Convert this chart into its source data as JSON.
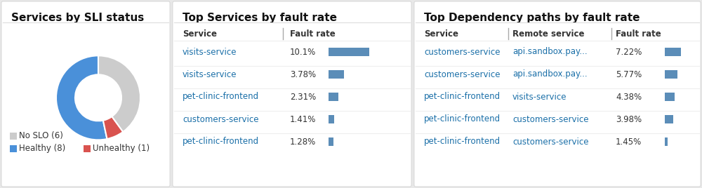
{
  "bg_color": "#e8e8e8",
  "panel_bg": "#ffffff",
  "panel1": {
    "title": "Services by SLI status",
    "donut_values": [
      8,
      1,
      6
    ],
    "donut_colors": [
      "#4a90d9",
      "#d9534f",
      "#cccccc"
    ],
    "legend_labels": [
      "Healthy (8)",
      "Unhealthy (1)",
      "No SLO (6)"
    ]
  },
  "panel2": {
    "title": "Top Services by fault rate",
    "col_service": "Service",
    "col_fault": "Fault rate",
    "rows": [
      {
        "service": "visits-service",
        "fault_rate": "10.1%",
        "bar_width": 0.85
      },
      {
        "service": "visits-service",
        "fault_rate": "3.78%",
        "bar_width": 0.32
      },
      {
        "service": "pet-clinic-frontend",
        "fault_rate": "2.31%",
        "bar_width": 0.2
      },
      {
        "service": "customers-service",
        "fault_rate": "1.41%",
        "bar_width": 0.12
      },
      {
        "service": "pet-clinic-frontend",
        "fault_rate": "1.28%",
        "bar_width": 0.11
      }
    ],
    "bar_color": "#5b8db8",
    "link_color": "#1a6fa8"
  },
  "panel3": {
    "title": "Top Dependency paths by fault rate",
    "col_service": "Service",
    "col_remote": "Remote service",
    "col_fault": "Fault rate",
    "rows": [
      {
        "service": "customers-service",
        "remote": "api.sandbox.pay...",
        "fault_rate": "7.22%",
        "bar_width": 0.72
      },
      {
        "service": "customers-service",
        "remote": "api.sandbox.pay...",
        "fault_rate": "5.77%",
        "bar_width": 0.57
      },
      {
        "service": "pet-clinic-frontend",
        "remote": "visits-service",
        "fault_rate": "4.38%",
        "bar_width": 0.43
      },
      {
        "service": "pet-clinic-frontend",
        "remote": "customers-service",
        "fault_rate": "3.98%",
        "bar_width": 0.39
      },
      {
        "service": "pet-clinic-frontend",
        "remote": "customers-service",
        "fault_rate": "1.45%",
        "bar_width": 0.14
      }
    ],
    "bar_color": "#5b8db8",
    "link_color": "#1a6fa8"
  },
  "title_fontsize": 11,
  "header_fontsize": 8.5,
  "row_fontsize": 8.5,
  "legend_fontsize": 8.5
}
